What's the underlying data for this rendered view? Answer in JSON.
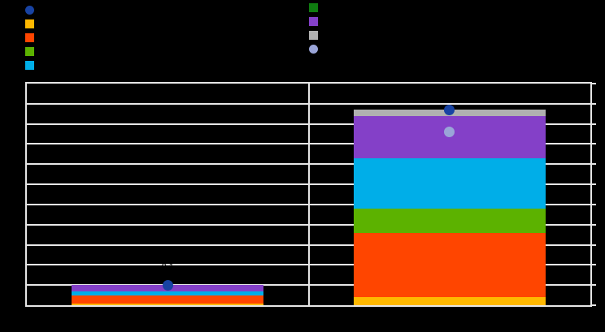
{
  "background_color": "#000000",
  "grid_color": "#E6E6E6",
  "legends": {
    "left": {
      "items": [
        {
          "name": "navy-dot-series",
          "shape": "circle",
          "color": "#1843A3",
          "label": ""
        },
        {
          "name": "amber-series",
          "shape": "square",
          "color": "#FFB800",
          "label": ""
        },
        {
          "name": "orange-red-series",
          "shape": "square",
          "color": "#FF4500",
          "label": ""
        },
        {
          "name": "green-series",
          "shape": "square",
          "color": "#5CB200",
          "label": ""
        },
        {
          "name": "cyan-series",
          "shape": "square",
          "color": "#00AEE8",
          "label": ""
        }
      ]
    },
    "right": {
      "items": [
        {
          "name": "dark-green-series",
          "shape": "square",
          "color": "#0F7C10",
          "label": ""
        },
        {
          "name": "purple-series",
          "shape": "square",
          "color": "#8440C8",
          "label": ""
        },
        {
          "name": "gray-series",
          "shape": "square",
          "color": "#B0B0B0",
          "label": ""
        },
        {
          "name": "lavender-dot-series",
          "shape": "circle",
          "color": "#9AA5D8",
          "label": ""
        }
      ]
    }
  },
  "chart_data": {
    "type": "bar",
    "stacked": true,
    "title": "",
    "xlabel": "",
    "ylabel": "",
    "categories": [
      "",
      ""
    ],
    "series": [
      {
        "name": "amber",
        "color": "#FFB800",
        "values": [
          0.01,
          0.04
        ]
      },
      {
        "name": "orange-red",
        "color": "#FF4500",
        "values": [
          0.04,
          0.32
        ]
      },
      {
        "name": "green",
        "color": "#5CB200",
        "values": [
          0.0,
          0.12
        ]
      },
      {
        "name": "cyan",
        "color": "#00AEE8",
        "values": [
          0.02,
          0.25
        ]
      },
      {
        "name": "purple",
        "color": "#8440C8",
        "values": [
          0.03,
          0.21
        ]
      },
      {
        "name": "gray",
        "color": "#B0B0B0",
        "values": [
          0.0,
          0.03
        ]
      },
      {
        "name": "dark-green",
        "color": "#0F7C10",
        "values": [
          0.0,
          0.0
        ]
      }
    ],
    "markers": [
      {
        "name": "navy-dot",
        "color": "#1843A3",
        "values": [
          0.1,
          0.97
        ]
      },
      {
        "name": "lavender-dot",
        "color": "#9AA5D8",
        "values": [
          null,
          0.86
        ]
      }
    ],
    "data_labels": [
      {
        "category": 0,
        "text": "0.1",
        "color": "#000000"
      }
    ],
    "ylim": [
      0,
      1.1
    ],
    "gridline_step": 0.1,
    "grid": "on",
    "legend_position": "top"
  }
}
